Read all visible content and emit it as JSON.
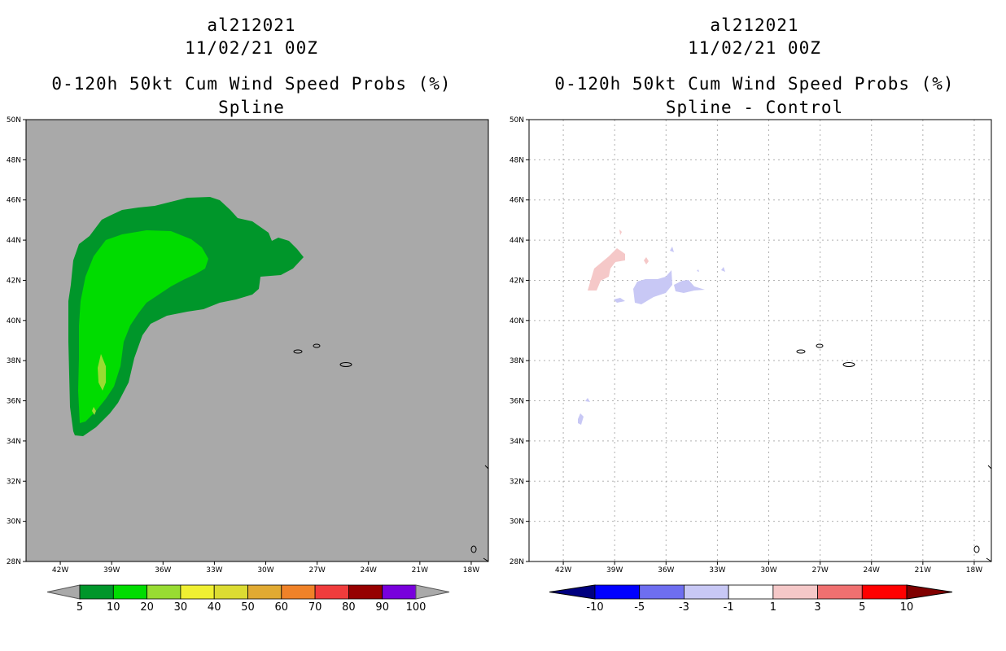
{
  "left": {
    "storm_id": "al212021",
    "datetime": "11/02/21 00Z",
    "product": "0-120h 50kt Cum Wind Speed Probs (%)",
    "subtitle": "Spline",
    "colorbar": {
      "labels": [
        "5",
        "10",
        "20",
        "30",
        "40",
        "50",
        "60",
        "70",
        "80",
        "90",
        "100"
      ],
      "colors": [
        "#00962a",
        "#00dc00",
        "#98dc32",
        "#f0f032",
        "#dcdc32",
        "#e1aa32",
        "#f08228",
        "#f03c3c",
        "#960000",
        "#7800dc"
      ]
    }
  },
  "right": {
    "storm_id": "al212021",
    "datetime": "11/02/21 00Z",
    "product": "0-120h 50kt Cum Wind Speed Probs (%)",
    "subtitle": "Spline - Control",
    "colorbar": {
      "labels": [
        "-10",
        "-5",
        "-3",
        "-1",
        "1",
        "3",
        "5",
        "10"
      ],
      "colors": [
        "#0000ff",
        "#6e6ef0",
        "#c8c8f5",
        "#ffffff",
        "#f5c8c8",
        "#f07070",
        "#ff0000"
      ]
    }
  },
  "axes": {
    "lat_labels": [
      "50N",
      "48N",
      "46N",
      "44N",
      "42N",
      "40N",
      "38N",
      "36N",
      "34N",
      "32N",
      "30N",
      "28N"
    ],
    "lon_labels": [
      "42W",
      "39W",
      "36W",
      "33W",
      "30W",
      "27W",
      "24W",
      "21W",
      "18W"
    ],
    "lat_range": [
      28,
      50
    ],
    "lon_range": [
      -44,
      -17
    ]
  },
  "colors": {
    "background_left": "#a9a9a9",
    "background_right": "#ffffff",
    "prob_10": "#00962a",
    "prob_20": "#00dc00",
    "prob_30": "#98dc32",
    "diff_neg": "#c8c8f5",
    "diff_pos": "#f5c8c8"
  }
}
